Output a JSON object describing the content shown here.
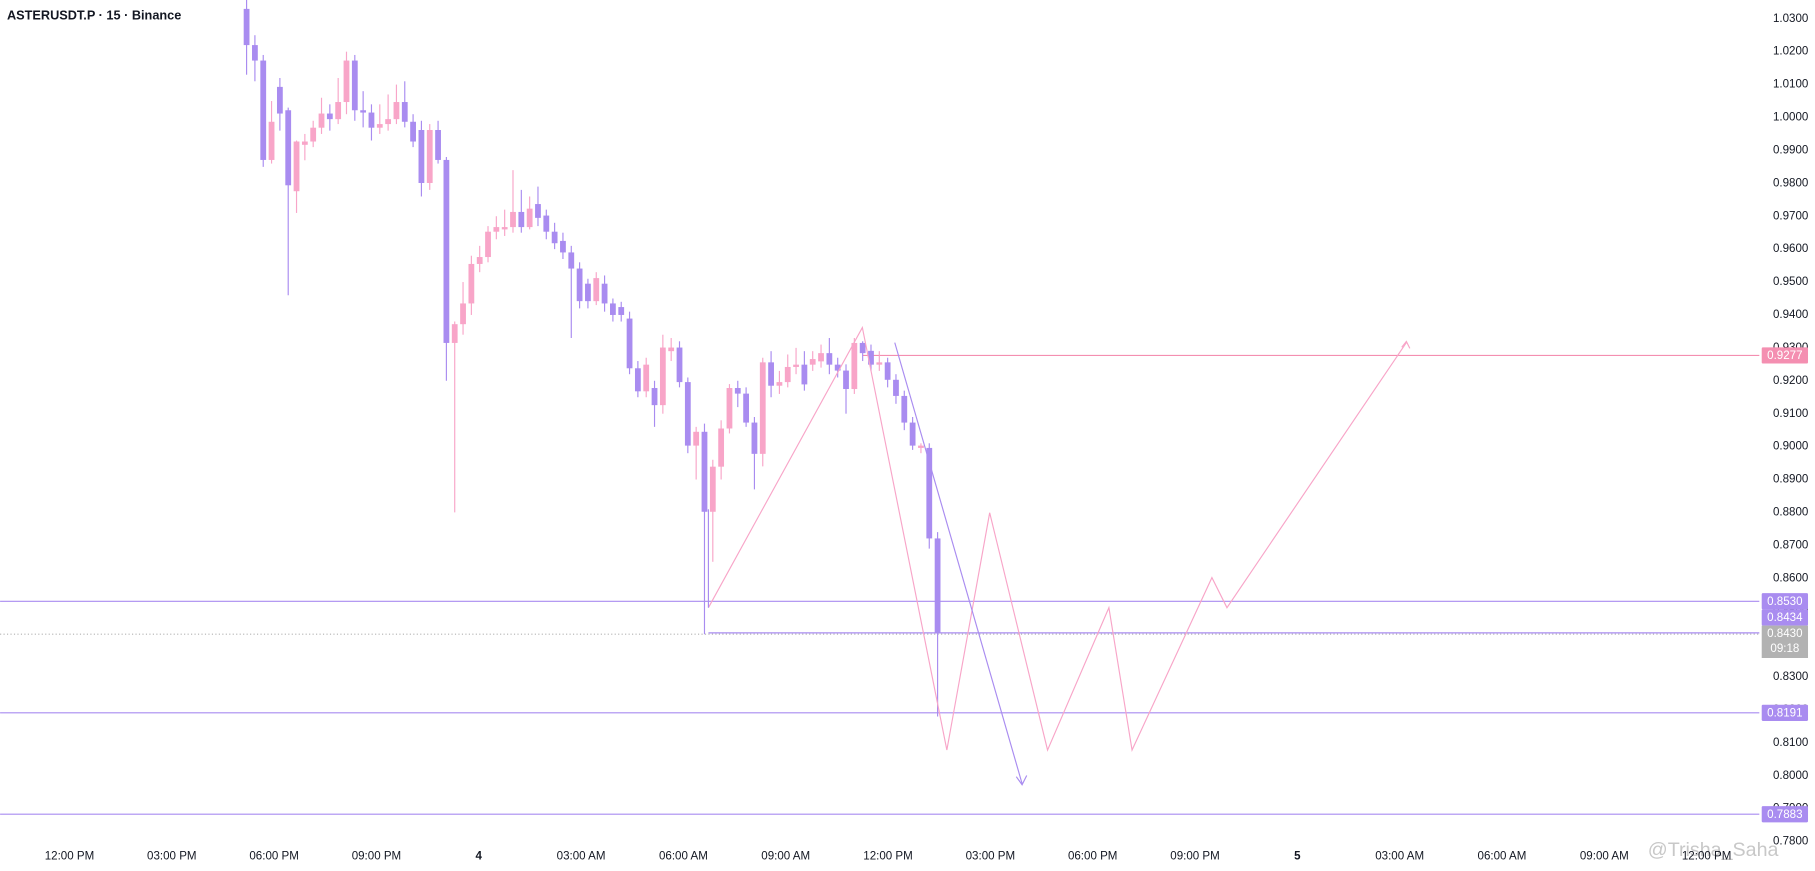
{
  "chart_data": {
    "type": "candlestick",
    "title": "ASTERUSDT.P · 15 · Binance",
    "up_color": "#f8a5c8",
    "down_color": "#a98cf0",
    "ohlc": [
      [
        1.033,
        1.036,
        1.013,
        1.022
      ],
      [
        1.022,
        1.025,
        1.011,
        1.0173
      ],
      [
        1.0173,
        1.019,
        0.985,
        0.9871
      ],
      [
        0.9871,
        1.005,
        0.986,
        0.9987
      ],
      [
        1.0093,
        1.012,
        0.996,
        1.0012
      ],
      [
        1.0022,
        1.003,
        0.946,
        0.9794
      ],
      [
        0.9776,
        0.993,
        0.971,
        0.9927
      ],
      [
        0.9917,
        0.995,
        0.987,
        0.9927
      ],
      [
        0.9927,
        0.999,
        0.991,
        0.9969
      ],
      [
        0.9969,
        1.006,
        0.995,
        1.0012
      ],
      [
        1.0012,
        1.004,
        0.996,
        0.9995
      ],
      [
        0.9995,
        1.012,
        0.998,
        1.0047
      ],
      [
        1.0047,
        1.02,
        1.001,
        1.0173
      ],
      [
        1.0173,
        1.019,
        0.999,
        1.0022
      ],
      [
        1.0022,
        1.008,
        0.997,
        1.0015
      ],
      [
        1.0015,
        1.004,
        0.993,
        0.9969
      ],
      [
        0.9969,
        1.004,
        0.995,
        0.998
      ],
      [
        0.998,
        1.007,
        0.996,
        0.9995
      ],
      [
        0.9995,
        1.01,
        0.998,
        1.0047
      ],
      [
        1.0047,
        1.011,
        0.997,
        0.9987
      ],
      [
        0.9987,
        1.001,
        0.991,
        0.9927
      ],
      [
        0.9962,
        0.999,
        0.976,
        0.9801
      ],
      [
        0.9801,
        0.998,
        0.978,
        0.9962
      ],
      [
        0.9962,
        0.999,
        0.986,
        0.9871
      ],
      [
        0.9871,
        0.988,
        0.92,
        0.9315
      ],
      [
        0.9315,
        0.938,
        0.88,
        0.9372
      ],
      [
        0.9372,
        0.95,
        0.934,
        0.9435
      ],
      [
        0.9435,
        0.958,
        0.94,
        0.9555
      ],
      [
        0.9555,
        0.961,
        0.953,
        0.9576
      ],
      [
        0.9576,
        0.967,
        0.956,
        0.9653
      ],
      [
        0.9653,
        0.97,
        0.963,
        0.9667
      ],
      [
        0.966,
        0.972,
        0.964,
        0.9667
      ],
      [
        0.9667,
        0.984,
        0.965,
        0.9713
      ],
      [
        0.9713,
        0.978,
        0.965,
        0.9667
      ],
      [
        0.9667,
        0.976,
        0.966,
        0.9723
      ],
      [
        0.9737,
        0.979,
        0.967,
        0.9695
      ],
      [
        0.9702,
        0.972,
        0.963,
        0.9653
      ],
      [
        0.9653,
        0.968,
        0.96,
        0.9618
      ],
      [
        0.9625,
        0.965,
        0.957,
        0.959
      ],
      [
        0.959,
        0.961,
        0.933,
        0.9541
      ],
      [
        0.9541,
        0.956,
        0.942,
        0.9442
      ],
      [
        0.9495,
        0.951,
        0.942,
        0.9442
      ],
      [
        0.9442,
        0.953,
        0.943,
        0.9512
      ],
      [
        0.9495,
        0.952,
        0.941,
        0.9435
      ],
      [
        0.9435,
        0.945,
        0.938,
        0.94
      ],
      [
        0.9424,
        0.944,
        0.938,
        0.94
      ],
      [
        0.9389,
        0.941,
        0.922,
        0.9238
      ],
      [
        0.9238,
        0.926,
        0.915,
        0.9168
      ],
      [
        0.9168,
        0.927,
        0.915,
        0.9249
      ],
      [
        0.9178,
        0.92,
        0.906,
        0.9126
      ],
      [
        0.9126,
        0.934,
        0.91,
        0.9301
      ],
      [
        0.929,
        0.933,
        0.926,
        0.9301
      ],
      [
        0.9301,
        0.932,
        0.918,
        0.9196
      ],
      [
        0.9196,
        0.921,
        0.898,
        0.9003
      ],
      [
        0.9003,
        0.906,
        0.89,
        0.9045
      ],
      [
        0.9045,
        0.907,
        0.843,
        0.8802
      ],
      [
        0.8802,
        0.896,
        0.865,
        0.8939
      ],
      [
        0.8939,
        0.908,
        0.89,
        0.9055
      ],
      [
        0.9055,
        0.919,
        0.904,
        0.9178
      ],
      [
        0.9178,
        0.92,
        0.912,
        0.9161
      ],
      [
        0.9161,
        0.918,
        0.906,
        0.9073
      ],
      [
        0.9073,
        0.909,
        0.887,
        0.8978
      ],
      [
        0.8978,
        0.927,
        0.894,
        0.9256
      ],
      [
        0.9256,
        0.929,
        0.915,
        0.9185
      ],
      [
        0.9185,
        0.923,
        0.916,
        0.9196
      ],
      [
        0.9196,
        0.928,
        0.918,
        0.9242
      ],
      [
        0.9242,
        0.93,
        0.922,
        0.9249
      ],
      [
        0.9249,
        0.929,
        0.917,
        0.9189
      ],
      [
        0.9249,
        0.929,
        0.923,
        0.9266
      ],
      [
        0.9259,
        0.931,
        0.924,
        0.9284
      ],
      [
        0.9284,
        0.933,
        0.922,
        0.9249
      ],
      [
        0.9249,
        0.927,
        0.921,
        0.9231
      ],
      [
        0.9231,
        0.925,
        0.91,
        0.9175
      ],
      [
        0.9175,
        0.933,
        0.916,
        0.9315
      ],
      [
        0.9315,
        0.932,
        0.926,
        0.9284
      ],
      [
        0.9291,
        0.931,
        0.923,
        0.9249
      ],
      [
        0.9249,
        0.929,
        0.923,
        0.9256
      ],
      [
        0.9256,
        0.927,
        0.918,
        0.9203
      ],
      [
        0.9203,
        0.922,
        0.913,
        0.9154
      ],
      [
        0.9154,
        0.917,
        0.905,
        0.9073
      ],
      [
        0.9073,
        0.909,
        0.899,
        0.9003
      ],
      [
        0.8996,
        0.901,
        0.898,
        0.9003
      ],
      [
        0.8996,
        0.901,
        0.869,
        0.8721
      ],
      [
        0.8721,
        0.874,
        0.818,
        0.8434
      ]
    ],
    "ylim": [
      0.7765,
      1.0357
    ],
    "yticks": [
      {
        "value": 0.78,
        "label": "0.7800"
      },
      {
        "value": 0.79,
        "label": "0.7900"
      },
      {
        "value": 0.8,
        "label": "0.8000"
      },
      {
        "value": 0.81,
        "label": "0.8100"
      },
      {
        "value": 0.82,
        "label": "0.8200"
      },
      {
        "value": 0.83,
        "label": "0.8300"
      },
      {
        "value": 0.84,
        "label": "0.8400"
      },
      {
        "value": 0.85,
        "label": "0.8500"
      },
      {
        "value": 0.86,
        "label": "0.8600"
      },
      {
        "value": 0.87,
        "label": "0.8700"
      },
      {
        "value": 0.88,
        "label": "0.8800"
      },
      {
        "value": 0.89,
        "label": "0.8900"
      },
      {
        "value": 0.9,
        "label": "0.9000"
      },
      {
        "value": 0.91,
        "label": "0.9100"
      },
      {
        "value": 0.92,
        "label": "0.9200"
      },
      {
        "value": 0.93,
        "label": "0.9300"
      },
      {
        "value": 0.94,
        "label": "0.9400"
      },
      {
        "value": 0.95,
        "label": "0.9500"
      },
      {
        "value": 0.96,
        "label": "0.9600"
      },
      {
        "value": 0.97,
        "label": "0.9700"
      },
      {
        "value": 0.98,
        "label": "0.9800"
      },
      {
        "value": 0.99,
        "label": "0.9900"
      },
      {
        "value": 1.0,
        "label": "1.0000"
      },
      {
        "value": 1.01,
        "label": "1.0100"
      },
      {
        "value": 1.02,
        "label": "1.0200"
      },
      {
        "value": 1.03,
        "label": "1.0300"
      }
    ],
    "x_labels": [
      "12:00 PM",
      "03:00 PM",
      "06:00 PM",
      "09:00 PM",
      "4",
      "03:00 AM",
      "06:00 AM",
      "09:00 AM",
      "12:00 PM",
      "03:00 PM",
      "06:00 PM",
      "09:00 PM",
      "5",
      "03:00 AM",
      "06:00 AM",
      "09:00 AM",
      "12:00 PM"
    ],
    "price_lines": [
      {
        "value": 0.9277,
        "label": "0.9277",
        "color": "#f48fb1"
      },
      {
        "value": 0.853,
        "label": "0.8530",
        "color": "#a98cf0"
      },
      {
        "value": 0.8434,
        "label": "0.8434",
        "color": "#a98cf0"
      },
      {
        "value": 0.8191,
        "label": "0.8191",
        "color": "#a98cf0"
      },
      {
        "value": 0.7883,
        "label": "0.7883",
        "color": "#a98cf0"
      }
    ],
    "last_price": {
      "value": 0.843,
      "label": "0.8430",
      "countdown": "09:18",
      "color": "#b2b2b2"
    },
    "watermark": "@Trisha_Saha"
  }
}
